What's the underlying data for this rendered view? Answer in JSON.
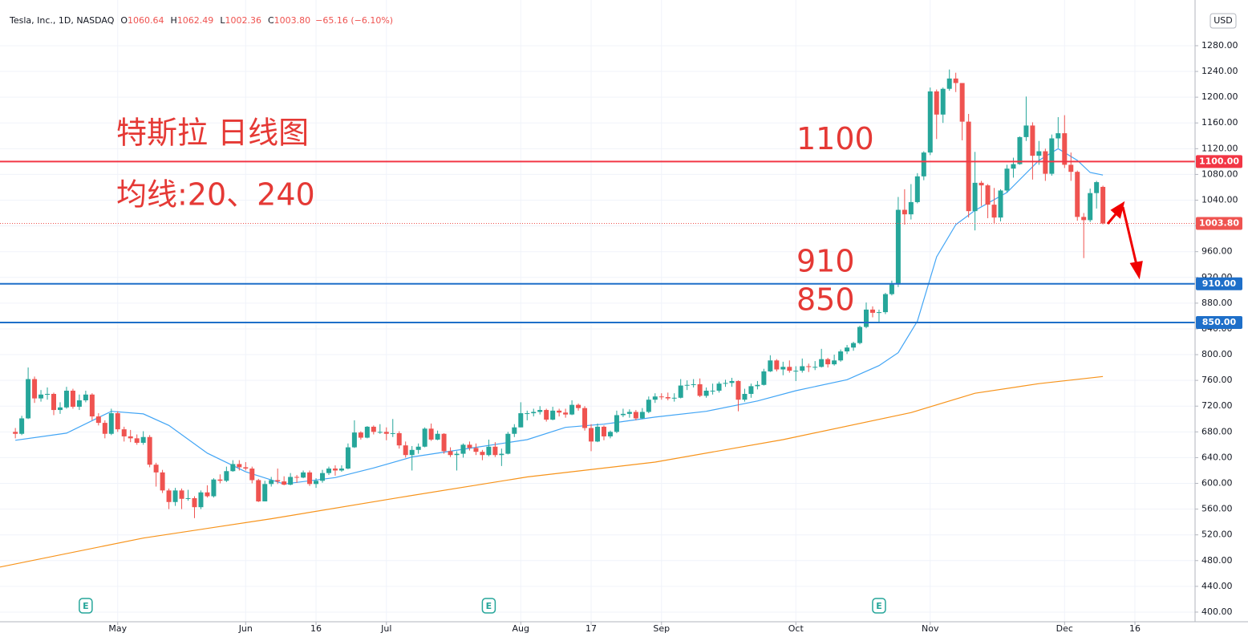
{
  "chart_data": {
    "type": "candlestick",
    "header": {
      "symbol": "Tesla, Inc., 1D, NASDAQ",
      "ohlc": [
        {
          "key": "O",
          "value": "1060.64"
        },
        {
          "key": "H",
          "value": "1062.49"
        },
        {
          "key": "L",
          "value": "1002.36"
        },
        {
          "key": "C",
          "value": "1003.80"
        }
      ],
      "change": "−65.16 (−6.10%)"
    },
    "currency": "USD",
    "annotations": [
      "特斯拉 日线图",
      "均线:20、240"
    ],
    "up_color": "#26a69a",
    "down_color": "#ef5350",
    "xlim": [
      -2.4,
      184.4
    ],
    "xticks": [
      {
        "value": 16,
        "label": "May"
      },
      {
        "value": 36,
        "label": "Jun"
      },
      {
        "value": 47,
        "label": "16"
      },
      {
        "value": 58,
        "label": "Jul"
      },
      {
        "value": 79,
        "label": "Aug"
      },
      {
        "value": 90,
        "label": "17"
      },
      {
        "value": 101,
        "label": "Sep"
      },
      {
        "value": 122,
        "label": "Oct"
      },
      {
        "value": 143,
        "label": "Nov"
      },
      {
        "value": 164,
        "label": "Dec"
      },
      {
        "value": 175,
        "label": "16"
      }
    ],
    "ylim": [
      385,
      1351
    ],
    "yticks": [
      {
        "value": 400,
        "label": "400.00"
      },
      {
        "value": 440,
        "label": "440.00"
      },
      {
        "value": 480,
        "label": "480.00"
      },
      {
        "value": 520,
        "label": "520.00"
      },
      {
        "value": 560,
        "label": "560.00"
      },
      {
        "value": 600,
        "label": "600.00"
      },
      {
        "value": 640,
        "label": "640.00"
      },
      {
        "value": 680,
        "label": "680.00"
      },
      {
        "value": 720,
        "label": "720.00"
      },
      {
        "value": 760,
        "label": "760.00"
      },
      {
        "value": 800,
        "label": "800.00"
      },
      {
        "value": 840,
        "label": "840.00"
      },
      {
        "value": 880,
        "label": "880.00"
      },
      {
        "value": 920,
        "label": "920.00"
      },
      {
        "value": 960,
        "label": "960.00"
      },
      {
        "value": 1000,
        "label": "1000.00"
      },
      {
        "value": 1040,
        "label": "1040.00"
      },
      {
        "value": 1080,
        "label": "1080.00"
      },
      {
        "value": 1120,
        "label": "1120.00"
      },
      {
        "value": 1160,
        "label": "1160.00"
      },
      {
        "value": 1200,
        "label": "1200.00"
      },
      {
        "value": 1240,
        "label": "1240.00"
      },
      {
        "value": 1280,
        "label": "1280.00"
      }
    ],
    "grid": true,
    "open": [
      680,
      677,
      701,
      762,
      732,
      738,
      739,
      714,
      718,
      744,
      719,
      729,
      738,
      704,
      694,
      677,
      709,
      684,
      673,
      670,
      663,
      672,
      629,
      617,
      589,
      571,
      589,
      576,
      577,
      563,
      586,
      580,
      606,
      604,
      619,
      630,
      625,
      623,
      605,
      572,
      599,
      605,
      603,
      598,
      610,
      609,
      617,
      599,
      604,
      616,
      623,
      620,
      623,
      656,
      679,
      671,
      688,
      680,
      680,
      677,
      678,
      659,
      644,
      652,
      657,
      685,
      668,
      677,
      650,
      644,
      646,
      660,
      655,
      649,
      644,
      657,
      644,
      646,
      677,
      687,
      709,
      709,
      711,
      714,
      699,
      713,
      710,
      707,
      722,
      717,
      686,
      665,
      688,
      673,
      680,
      706,
      708,
      711,
      701,
      711,
      730,
      735,
      734,
      732,
      733,
      752,
      753,
      754,
      736,
      744,
      744,
      755,
      756,
      759,
      730,
      739,
      751,
      753,
      774,
      791,
      777,
      781,
      775,
      775,
      782,
      781,
      781,
      793,
      785,
      791,
      805,
      811,
      818,
      843,
      870,
      865,
      866,
      894,
      909,
      1025,
      1018,
      1037,
      1077,
      1114,
      1209,
      1173,
      1213,
      1229,
      1222,
      1162,
      1023,
      1067,
      1063,
      1033,
      1013,
      1055,
      1089,
      1096,
      1138,
      1156,
      1109,
      1116,
      1081,
      1136,
      1144,
      1095,
      1084,
      1014,
      1009,
      1051,
      1060.64
    ],
    "high": [
      686,
      705,
      780,
      766,
      745,
      749,
      741,
      726,
      750,
      747,
      738,
      744,
      740,
      709,
      698,
      716,
      712,
      688,
      683,
      676,
      681,
      675,
      632,
      621,
      592,
      593,
      592,
      590,
      580,
      589,
      597,
      608,
      614,
      626,
      636,
      636,
      633,
      626,
      607,
      604,
      610,
      623,
      611,
      616,
      613,
      620,
      620,
      608,
      621,
      626,
      628,
      628,
      662,
      698,
      681,
      689,
      690,
      692,
      687,
      700,
      681,
      665,
      658,
      662,
      687,
      693,
      682,
      678,
      656,
      650,
      662,
      665,
      662,
      652,
      668,
      664,
      654,
      680,
      692,
      726,
      713,
      716,
      720,
      716,
      719,
      716,
      716,
      729,
      724,
      720,
      692,
      693,
      690,
      682,
      713,
      716,
      715,
      714,
      717,
      735,
      740,
      740,
      741,
      740,
      762,
      760,
      762,
      763,
      749,
      755,
      758,
      761,
      764,
      760,
      747,
      755,
      759,
      778,
      799,
      793,
      789,
      791,
      782,
      794,
      786,
      790,
      809,
      795,
      800,
      808,
      815,
      820,
      845,
      881,
      875,
      870,
      896,
      915,
      1045,
      1057,
      1065,
      1082,
      1116,
      1215,
      1212,
      1215,
      1243,
      1238,
      1222,
      1174,
      1115,
      1070,
      1065,
      1059,
      1057,
      1095,
      1106,
      1139,
      1201,
      1161,
      1132,
      1120,
      1142,
      1169,
      1172,
      1114,
      1086,
      1020,
      1058,
      1070,
      1062.49
    ],
    "low": [
      670,
      675,
      700,
      725,
      727,
      730,
      706,
      708,
      716,
      716,
      714,
      726,
      698,
      690,
      670,
      675,
      680,
      665,
      664,
      660,
      660,
      625,
      595,
      585,
      560,
      565,
      560,
      573,
      546,
      560,
      578,
      578,
      600,
      602,
      618,
      620,
      620,
      600,
      571,
      572,
      595,
      599,
      597,
      597,
      601,
      608,
      596,
      593,
      601,
      613,
      612,
      618,
      622,
      655,
      668,
      670,
      676,
      677,
      667,
      672,
      654,
      640,
      620,
      646,
      656,
      666,
      667,
      646,
      641,
      620,
      640,
      651,
      644,
      636,
      642,
      641,
      627,
      645,
      672,
      687,
      698,
      704,
      707,
      696,
      698,
      704,
      702,
      706,
      713,
      682,
      650,
      664,
      667,
      670,
      678,
      703,
      702,
      698,
      700,
      709,
      725,
      730,
      729,
      727,
      732,
      745,
      749,
      734,
      733,
      738,
      741,
      750,
      750,
      712,
      727,
      733,
      746,
      752,
      773,
      774,
      768,
      772,
      759,
      772,
      773,
      776,
      780,
      780,
      783,
      789,
      801,
      806,
      816,
      841,
      858,
      851,
      863,
      892,
      905,
      1002,
      1010,
      1035,
      1071,
      1110,
      1135,
      1160,
      1210,
      1208,
      1133,
      1013,
      993,
      1031,
      1012,
      1003,
      1007,
      1052,
      1075,
      1095,
      1132,
      1072,
      1095,
      1070,
      1078,
      1121,
      1090,
      1070,
      1008,
      950,
      1006,
      1027,
      1002.36
    ],
    "close": [
      677,
      701,
      762,
      732,
      738,
      739,
      714,
      718,
      744,
      719,
      729,
      738,
      704,
      694,
      677,
      709,
      684,
      673,
      670,
      663,
      672,
      629,
      617,
      589,
      571,
      589,
      576,
      577,
      563,
      586,
      580,
      606,
      604,
      619,
      630,
      625,
      623,
      605,
      572,
      599,
      605,
      603,
      598,
      610,
      609,
      617,
      599,
      604,
      616,
      623,
      620,
      623,
      656,
      679,
      671,
      688,
      680,
      680,
      677,
      678,
      659,
      644,
      652,
      657,
      685,
      668,
      677,
      650,
      644,
      646,
      660,
      655,
      649,
      644,
      657,
      644,
      646,
      677,
      687,
      709,
      709,
      711,
      714,
      699,
      713,
      710,
      707,
      722,
      717,
      686,
      665,
      688,
      673,
      680,
      706,
      708,
      711,
      701,
      711,
      730,
      735,
      734,
      732,
      733,
      752,
      753,
      754,
      736,
      744,
      744,
      755,
      756,
      759,
      730,
      739,
      751,
      753,
      774,
      791,
      777,
      781,
      775,
      775,
      782,
      781,
      781,
      793,
      785,
      791,
      805,
      811,
      818,
      843,
      870,
      865,
      866,
      894,
      909,
      1025,
      1018,
      1037,
      1077,
      1114,
      1209,
      1173,
      1213,
      1229,
      1222,
      1162,
      1023,
      1067,
      1063,
      1033,
      1013,
      1055,
      1089,
      1096,
      1138,
      1156,
      1109,
      1116,
      1081,
      1136,
      1144,
      1095,
      1084,
      1014,
      1009,
      1051,
      1068,
      1003.8
    ],
    "ma": [
      {
        "color": "#42a5f5",
        "x": [
          0,
          8,
          15,
          20,
          24,
          30,
          36,
          42,
          50,
          56,
          62,
          70,
          76,
          80,
          86,
          92,
          100,
          108,
          116,
          122,
          130,
          135,
          138,
          141,
          144,
          147,
          150,
          155,
          160,
          163,
          166,
          168,
          170
        ],
        "values": [
          667,
          678,
          712,
          708,
          690,
          647,
          618,
          599,
          609,
          624,
          641,
          653,
          662,
          668,
          687,
          692,
          703,
          712,
          728,
          744,
          761,
          783,
          803,
          852,
          952,
          1002,
          1024,
          1052,
          1102,
          1120,
          1102,
          1083,
          1079
        ]
      },
      {
        "color": "#f7931a",
        "x": [
          -2.4,
          20,
          40,
          60,
          80,
          100,
          120,
          140,
          150,
          160,
          170
        ],
        "values": [
          470,
          515,
          545,
          578,
          610,
          633,
          668,
          710,
          740,
          755,
          766
        ]
      }
    ],
    "levels": [
      {
        "value": 1100,
        "tag": "1100.00",
        "color": "#f23645"
      },
      {
        "value": 910,
        "tag": "910.00",
        "color": "#1e6fc9"
      },
      {
        "value": 850,
        "tag": "850.00",
        "color": "#1e6fc9"
      }
    ],
    "last_price": {
      "value": 1003.8,
      "label": "1003.80",
      "color": "#ef5350"
    },
    "earnings": [
      {
        "x": 11,
        "label": "E"
      },
      {
        "x": 74,
        "label": "E"
      },
      {
        "x": 135,
        "label": "E"
      }
    ]
  }
}
